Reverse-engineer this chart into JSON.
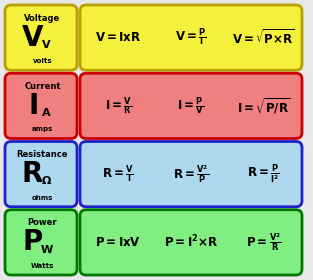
{
  "background_color": "#e8e8e8",
  "rows": [
    {
      "label_bg": "#f5f03c",
      "formula_bg": "#f5f03c",
      "border_color": "#b8a000",
      "label_title": "Voltage",
      "label_symbol": "V",
      "label_sub": "V",
      "label_unit": "volts",
      "formulas_raw": [
        "V= IxR",
        "V= \\frac{P}{I}",
        "V= \\sqrt{P{\\times}R}"
      ]
    },
    {
      "label_bg": "#f08080",
      "formula_bg": "#f08080",
      "border_color": "#cc0000",
      "label_title": "Current",
      "label_symbol": "I",
      "label_sub": "A",
      "label_unit": "amps",
      "formulas_raw": [
        "I= \\frac{V}{R}",
        "I= \\frac{P}{V}",
        "I= \\sqrt{P/R}"
      ]
    },
    {
      "label_bg": "#add8f0",
      "formula_bg": "#add8f0",
      "border_color": "#2020cc",
      "label_title": "Resistance",
      "label_symbol": "R",
      "label_sub": "\\Omega",
      "label_unit": "ohms",
      "formulas_raw": [
        "R= \\frac{V}{I}",
        "R= \\frac{V^{2}}{P}",
        "R= \\frac{P}{I^{2}}"
      ]
    },
    {
      "label_bg": "#80ee80",
      "formula_bg": "#80ee80",
      "border_color": "#007700",
      "label_title": "Power",
      "label_symbol": "P",
      "label_sub": "W",
      "label_unit": "Watts",
      "formulas_raw": [
        "P= IxV",
        "P= I^{2}{\\times}R",
        "P= \\frac{V^{2}}{R}"
      ]
    }
  ]
}
